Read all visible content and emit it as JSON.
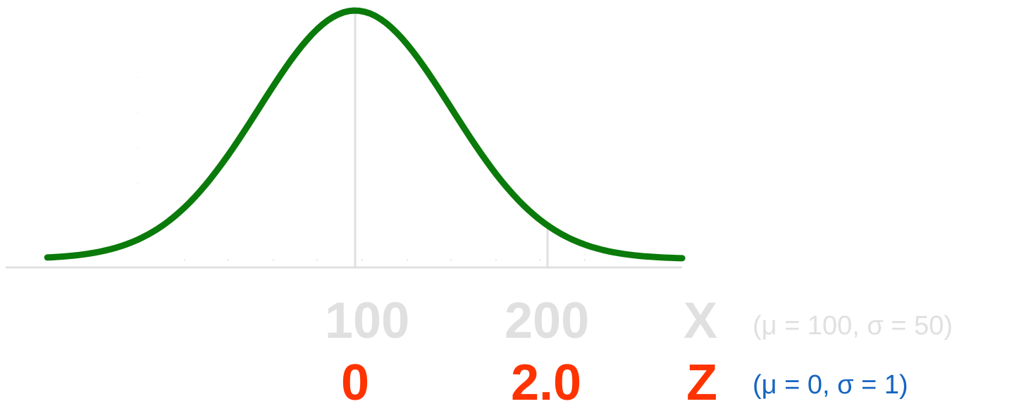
{
  "x_scale": {
    "tick_labels": [
      "100",
      "200"
    ],
    "variable": "X",
    "params": "(μ = 100, σ = 50)",
    "color": "#e0e0e0"
  },
  "z_scale": {
    "tick_labels": [
      "0",
      "2.0"
    ],
    "variable": "Z",
    "params": "(μ = 0, σ = 1)",
    "label_color": "#ff3300",
    "params_color": "#1565c0"
  },
  "curve": {
    "mean": 100,
    "sd": 50,
    "x_min": -60,
    "x_max": 270,
    "marker_at": 200,
    "color": "#0a7a0a"
  }
}
